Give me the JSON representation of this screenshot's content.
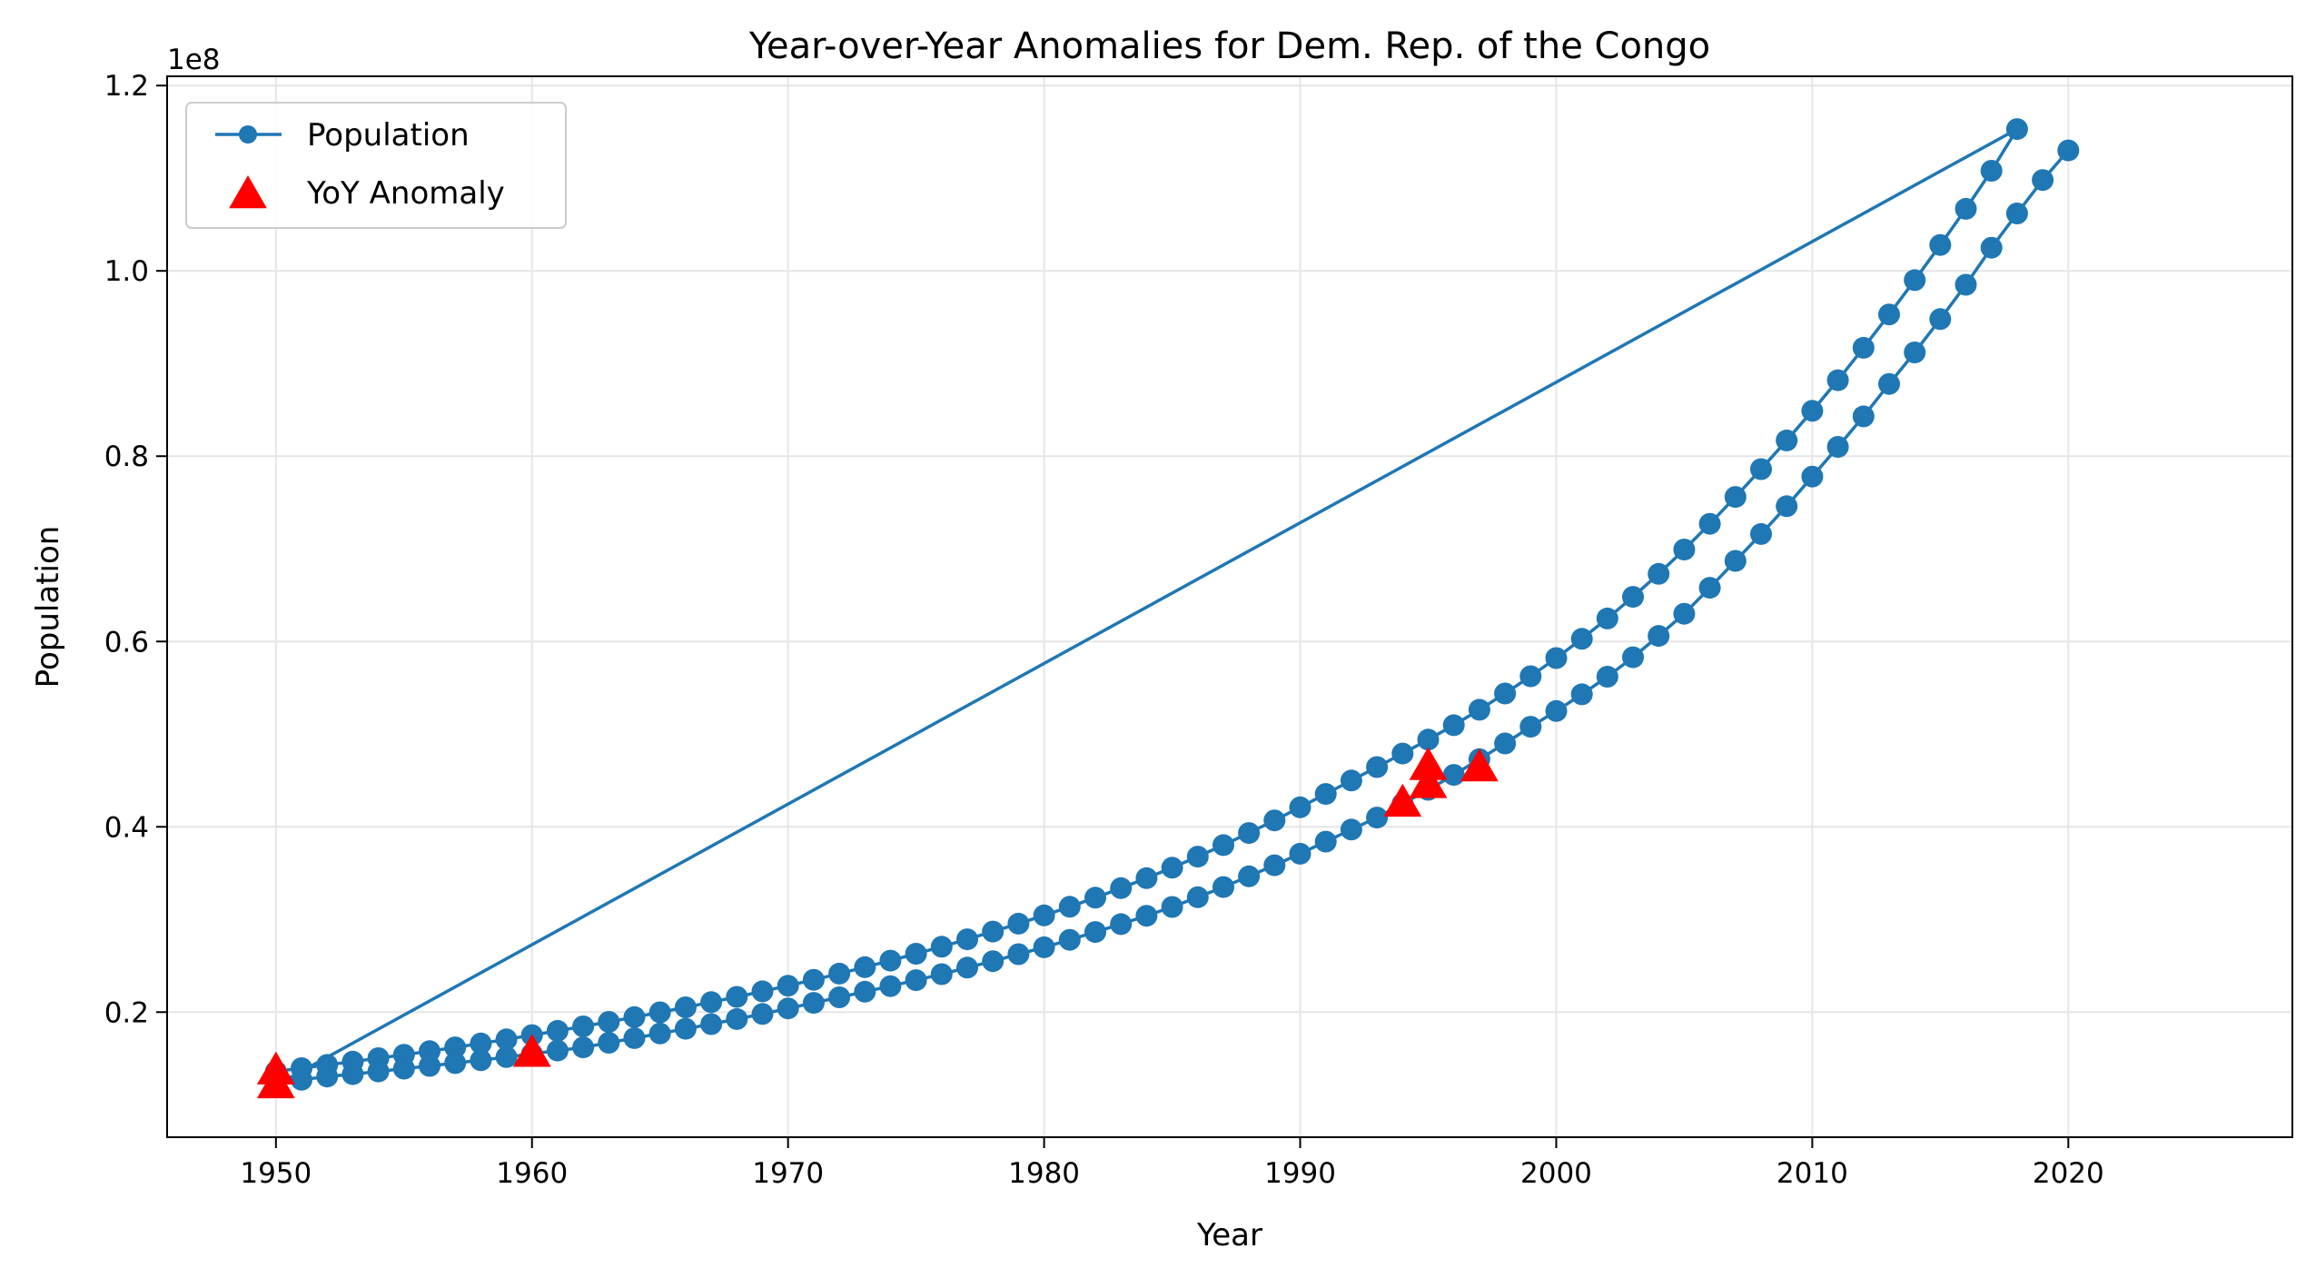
{
  "colors": {
    "population": "#1f77b4",
    "anomaly": "#ff0000",
    "grid": "#e6e6e6",
    "axes": "#000000"
  },
  "chart_data": {
    "type": "line",
    "title": "Year-over-Year Anomalies for Dem. Rep. of the Congo",
    "xlabel": "Year",
    "ylabel": "Population",
    "xlim": [
      1945.75,
      2028.75
    ],
    "ylim": [
      6500000,
      121000000
    ],
    "y_offset_label": "1e8",
    "x_ticks": [
      1950,
      1960,
      1970,
      1980,
      1990,
      2000,
      2010,
      2020
    ],
    "x_tick_labels": [
      "1950",
      "1960",
      "1970",
      "1980",
      "1990",
      "2000",
      "2010",
      "2020"
    ],
    "y_ticks": [
      20000000,
      40000000,
      60000000,
      80000000,
      100000000,
      120000000
    ],
    "y_tick_labels": [
      "0.2",
      "0.4",
      "0.6",
      "0.8",
      "1.0",
      "1.2"
    ],
    "grid": true,
    "legend_position": "top-left",
    "series": [
      {
        "name": "Population",
        "style": "line-with-circle-markers",
        "segments": [
          {
            "start_year": 1950,
            "values": [
              13600000,
              13950000,
              14300000,
              14660000,
              15030000,
              15400000,
              15780000,
              16200000,
              16620000,
              17060000,
              17520000,
              17980000,
              18460000,
              18950000,
              19460000,
              19980000,
              20520000,
              21080000,
              21650000,
              22240000,
              22850000,
              23490000,
              24160000,
              24850000,
              25560000,
              26300000,
              27060000,
              27860000,
              28690000,
              29550000,
              30440000,
              31370000,
              32350000,
              33380000,
              34460000,
              35590000,
              36780000,
              38030000,
              39330000,
              40690000,
              42100000,
              43550000,
              45000000,
              46450000,
              47910000,
              49410000,
              50970000,
              52630000,
              54390000,
              56250000,
              58210000,
              60290000,
              62490000,
              64820000,
              67300000,
              69930000,
              72700000,
              75600000,
              78600000,
              81700000,
              84900000,
              88200000,
              91700000,
              95300000,
              99000000,
              102800000,
              106700000,
              110800000,
              115300000
            ]
          },
          {
            "start_year": 1950,
            "values": [
              12100000,
              12700000,
              13050000,
              13300000,
              13600000,
              13900000,
              14200000,
              14500000,
              14800000,
              15150000,
              15500000,
              15850000,
              16200000
            ]
          },
          {
            "start_year": 1963,
            "values": [
              16700000,
              17200000,
              17700000,
              18200000,
              18700000,
              19250000,
              19800000,
              20400000,
              21000000,
              21600000,
              22200000,
              22800000,
              23450000,
              24100000,
              24800000,
              25500000,
              26250000,
              27000000,
              27800000,
              28650000,
              29500000,
              30400000,
              31350000,
              32400000,
              33500000,
              34650000,
              35850000,
              37100000,
              38400000,
              39700000,
              41000000,
              42500000,
              44000000,
              45600000,
              47300000,
              49000000,
              50800000,
              52500000,
              54300000,
              56200000,
              58300000,
              60600000,
              63000000,
              65800000,
              68700000,
              71600000,
              74600000,
              77800000,
              81000000,
              84300000,
              87800000,
              91200000,
              94800000,
              98500000,
              102500000,
              106200000,
              109800000,
              113000000
            ]
          }
        ]
      },
      {
        "name": "YoY Anomaly",
        "style": "red-triangle-markers",
        "points": [
          {
            "x": 1950,
            "y": 12100000
          },
          {
            "x": 1950,
            "y": 13600000
          },
          {
            "x": 1960,
            "y": 15500000
          },
          {
            "x": 1994,
            "y": 42500000
          },
          {
            "x": 1995,
            "y": 44500000
          },
          {
            "x": 1995,
            "y": 46450000
          },
          {
            "x": 1997,
            "y": 46300000
          }
        ]
      }
    ]
  }
}
